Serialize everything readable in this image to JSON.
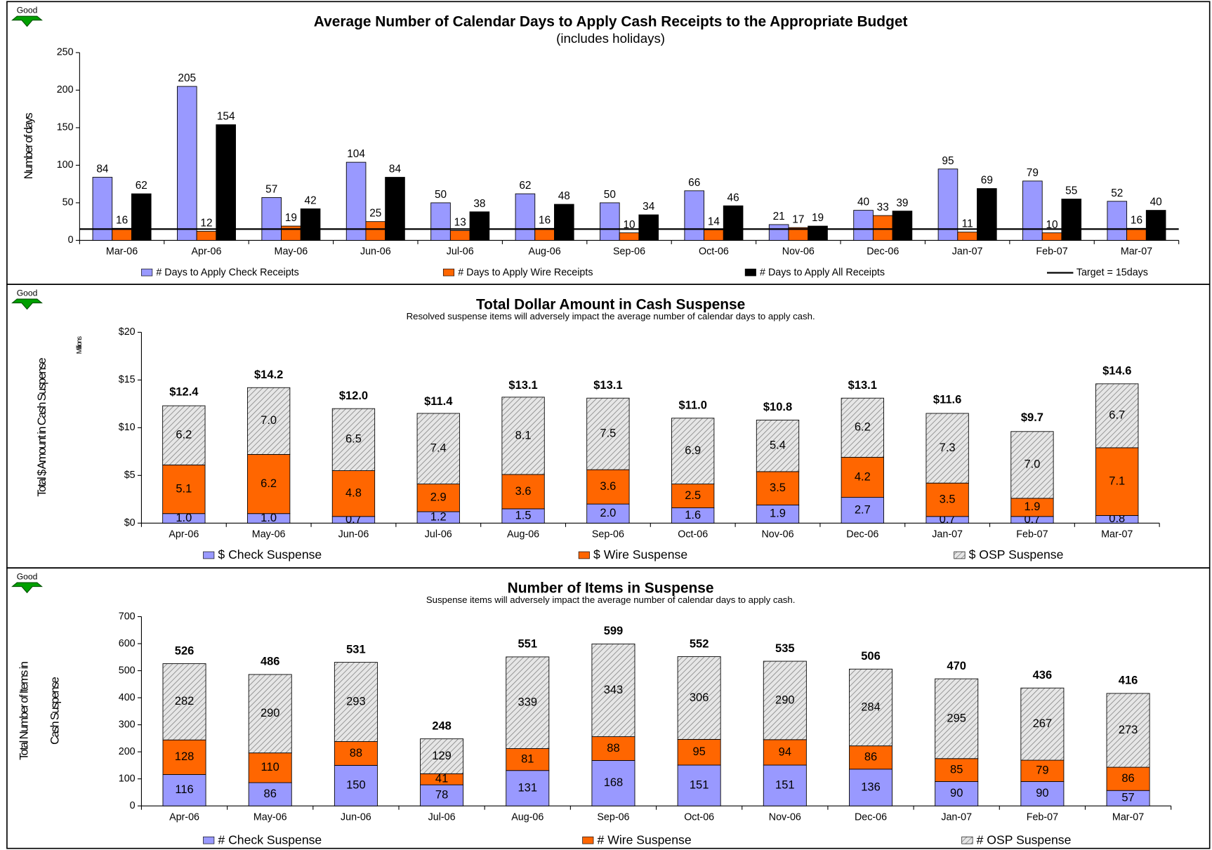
{
  "chart_data": [
    {
      "type": "bar",
      "indicator": "Good",
      "title": "Average Number of Calendar Days to Apply Cash Receipts to the Appropriate Budget",
      "subtitle": "(includes holidays)",
      "ylabel": [
        "Number of days"
      ],
      "categories": [
        "Mar-06",
        "Apr-06",
        "May-06",
        "Jun-06",
        "Jul-06",
        "Aug-06",
        "Sep-06",
        "Oct-06",
        "Nov-06",
        "Dec-06",
        "Jan-07",
        "Feb-07",
        "Mar-07"
      ],
      "series": [
        {
          "name": "# Days to Apply Check Receipts",
          "color": "#9999ff",
          "values": [
            84,
            205,
            57,
            104,
            50,
            62,
            50,
            66,
            21,
            40,
            95,
            79,
            52
          ]
        },
        {
          "name": "# Days to Apply Wire Receipts",
          "color": "#ff6600",
          "values": [
            16,
            12,
            19,
            25,
            13,
            16,
            10,
            14,
            17,
            33,
            11,
            10,
            16
          ]
        },
        {
          "name": "# Days to Apply All Receipts",
          "color": "#000000",
          "values": [
            62,
            154,
            42,
            84,
            38,
            48,
            34,
            46,
            19,
            39,
            69,
            55,
            40
          ]
        }
      ],
      "target": {
        "value": 15,
        "label": "Target = 15days",
        "color": "#000000"
      },
      "ylim": [
        0,
        250
      ],
      "yticks": [
        0,
        50,
        100,
        150,
        200,
        250
      ]
    },
    {
      "type": "stacked_bar",
      "indicator": "Good",
      "title": "Total Dollar Amount in Cash Suspense",
      "subtitle": "Resolved suspense items will adversely impact the average number of calendar days to apply cash.",
      "ylabel": [
        "Total $ Amount in Cash Suspense"
      ],
      "units": "Millions",
      "categories": [
        "Apr-06",
        "May-06",
        "Jun-06",
        "Jul-06",
        "Aug-06",
        "Sep-06",
        "Oct-06",
        "Nov-06",
        "Dec-06",
        "Jan-07",
        "Feb-07",
        "Mar-07"
      ],
      "series": [
        {
          "name": "$ Check Suspense",
          "color": "#9999ff",
          "values": [
            1.0,
            1.0,
            0.7,
            1.2,
            1.5,
            2.0,
            1.6,
            1.9,
            2.7,
            0.7,
            0.7,
            0.8
          ],
          "value_labels": [
            "1.0",
            "1.0",
            "0.7",
            "1.2",
            "1.5",
            "2.0",
            "1.6",
            "1.9",
            "2.7",
            "0.7",
            "0.7",
            "0.8"
          ]
        },
        {
          "name": "$ Wire Suspense",
          "color": "#ff6600",
          "values": [
            5.1,
            6.2,
            4.8,
            2.9,
            3.6,
            3.6,
            2.5,
            3.5,
            4.2,
            3.5,
            1.9,
            7.1
          ],
          "value_labels": [
            "5.1",
            "6.2",
            "4.8",
            "2.9",
            "3.6",
            "3.6",
            "2.5",
            "3.5",
            "4.2",
            "3.5",
            "1.9",
            "7.1"
          ]
        },
        {
          "name": "$ OSP Suspense",
          "color": "#d9d9d9",
          "hatch": true,
          "values": [
            6.2,
            7.0,
            6.5,
            7.4,
            8.1,
            7.5,
            6.9,
            5.4,
            6.2,
            7.3,
            7.0,
            6.7
          ],
          "value_labels": [
            "6.2",
            "7.0",
            "6.5",
            "7.4",
            "8.1",
            "7.5",
            "6.9",
            "5.4",
            "6.2",
            "7.3",
            "7.0",
            "6.7"
          ]
        }
      ],
      "totals": [
        12.4,
        14.2,
        12.0,
        11.4,
        13.1,
        13.1,
        11.0,
        10.8,
        13.1,
        11.6,
        9.7,
        14.6
      ],
      "total_labels": [
        "$12.4",
        "$14.2",
        "$12.0",
        "$11.4",
        "$13.1",
        "$13.1",
        "$11.0",
        "$10.8",
        "$13.1",
        "$11.6",
        "$9.7",
        "$14.6"
      ],
      "ylim": [
        0,
        20
      ],
      "yticks": [
        {
          "value": 0,
          "label": "$0"
        },
        {
          "value": 5,
          "label": "$5"
        },
        {
          "value": 10,
          "label": "$10"
        },
        {
          "value": 15,
          "label": "$15"
        },
        {
          "value": 20,
          "label": "$20"
        }
      ]
    },
    {
      "type": "stacked_bar",
      "indicator": "Good",
      "title": "Number of Items in Suspense",
      "subtitle": "Suspense items will adversely impact the average number of calendar days to apply cash.",
      "ylabel": [
        "Total Number of Items in",
        "Cash Suspense"
      ],
      "categories": [
        "Apr-06",
        "May-06",
        "Jun-06",
        "Jul-06",
        "Aug-06",
        "Sep-06",
        "Oct-06",
        "Nov-06",
        "Dec-06",
        "Jan-07",
        "Feb-07",
        "Mar-07"
      ],
      "series": [
        {
          "name": "# Check Suspense",
          "color": "#9999ff",
          "values": [
            116,
            86,
            150,
            78,
            131,
            168,
            151,
            151,
            136,
            90,
            90,
            57
          ]
        },
        {
          "name": "# Wire Suspense",
          "color": "#ff6600",
          "values": [
            128,
            110,
            88,
            41,
            81,
            88,
            95,
            94,
            86,
            85,
            79,
            86
          ]
        },
        {
          "name": "# OSP Suspense",
          "color": "#d9d9d9",
          "hatch": true,
          "values": [
            282,
            290,
            293,
            129,
            339,
            343,
            306,
            290,
            284,
            295,
            267,
            273
          ]
        }
      ],
      "totals": [
        526,
        486,
        531,
        248,
        551,
        599,
        552,
        535,
        506,
        470,
        436,
        416
      ],
      "ylim": [
        0,
        700
      ],
      "yticks": [
        0,
        100,
        200,
        300,
        400,
        500,
        600,
        700
      ]
    }
  ]
}
